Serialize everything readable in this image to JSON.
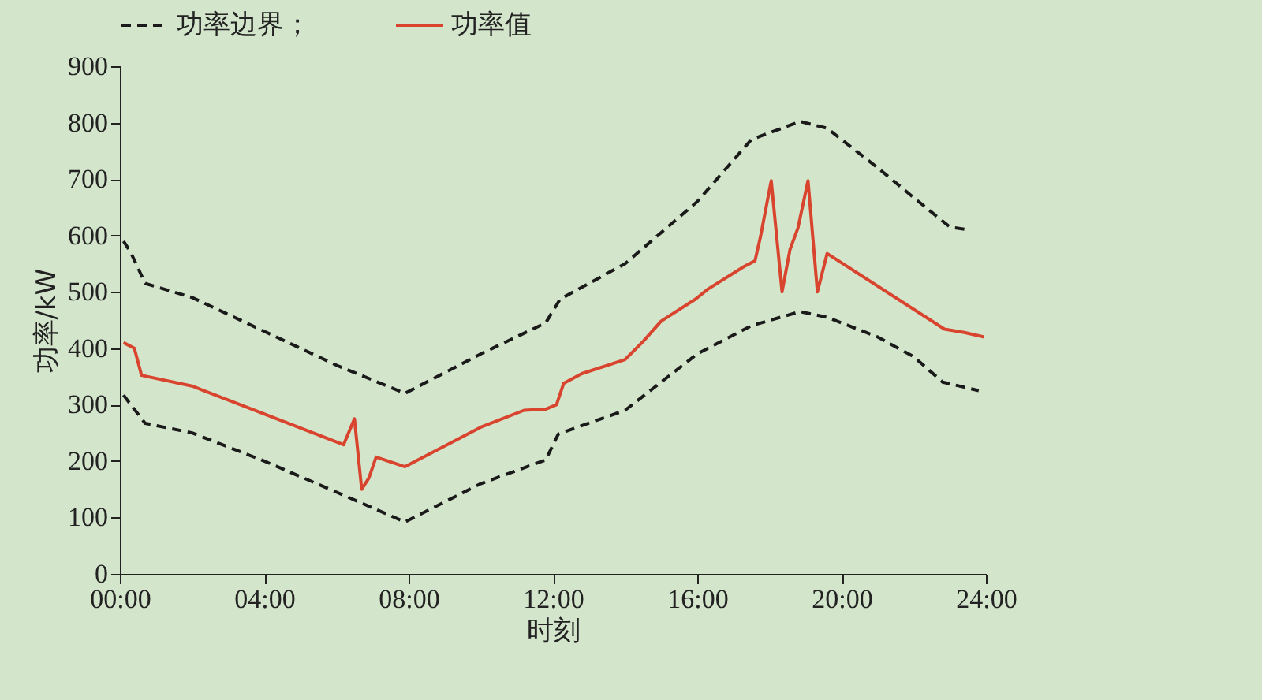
{
  "chart_data": {
    "type": "line",
    "xlabel": "时刻",
    "ylabel": "功率/kW",
    "xlim": [
      0,
      24
    ],
    "xticks": [
      {
        "value": 0,
        "label": "00:00"
      },
      {
        "value": 4,
        "label": "04:00"
      },
      {
        "value": 8,
        "label": "08:00"
      },
      {
        "value": 12,
        "label": "12:00"
      },
      {
        "value": 16,
        "label": "16:00"
      },
      {
        "value": 20,
        "label": "20:00"
      },
      {
        "value": 24,
        "label": "24:00"
      }
    ],
    "ylim": [
      0,
      900
    ],
    "yticks": [
      0,
      100,
      200,
      300,
      400,
      500,
      600,
      700,
      800,
      900
    ],
    "grid": false,
    "legend": "top",
    "marker": "none",
    "series": [
      {
        "name": "功率边界；",
        "color": "#1a1a1a",
        "line_style": "dashed",
        "x": [
          0.1,
          0.3,
          0.7,
          2,
          4,
          6,
          7.9,
          10,
          11.8,
          12.2,
          14,
          16,
          17.5,
          18.85,
          19.6,
          21,
          22,
          23,
          23.5
        ],
        "values": [
          590,
          570,
          515,
          490,
          430,
          370,
          320,
          390,
          445,
          487,
          550,
          660,
          770,
          802,
          790,
          720,
          667,
          615,
          610
        ]
      },
      {
        "color": "#1a1a1a",
        "line_style": "dashed",
        "x": [
          0.1,
          0.3,
          0.7,
          2,
          4,
          6,
          7.9,
          10,
          11.8,
          12.15,
          14,
          16,
          17.5,
          18.85,
          19.6,
          21,
          22,
          22.8,
          23.8
        ],
        "values": [
          317,
          300,
          267,
          250,
          200,
          145,
          92,
          160,
          202,
          248,
          290,
          390,
          440,
          465,
          455,
          420,
          385,
          340,
          325
        ]
      },
      {
        "name": "功率值",
        "color": "#d9442f",
        "line_style": "solid",
        "x": [
          0.1,
          0.4,
          0.6,
          2,
          6.2,
          6.5,
          6.7,
          6.9,
          7.1,
          7.9,
          10,
          11.2,
          11.8,
          12.1,
          12.3,
          12.8,
          14,
          14.5,
          15,
          15.95,
          16.3,
          17.3,
          17.6,
          17.75,
          18.05,
          18.35,
          18.57,
          18.79,
          19.07,
          19.33,
          19.6,
          22.85,
          23.4,
          23.95
        ],
        "values": [
          410,
          400,
          352,
          333,
          229,
          275,
          150,
          170,
          207,
          190,
          260,
          290,
          292,
          300,
          338,
          355,
          380,
          412,
          448,
          487,
          505,
          545,
          555,
          597,
          697,
          500,
          575,
          613,
          697,
          500,
          568,
          434,
          428,
          420
        ]
      }
    ]
  }
}
